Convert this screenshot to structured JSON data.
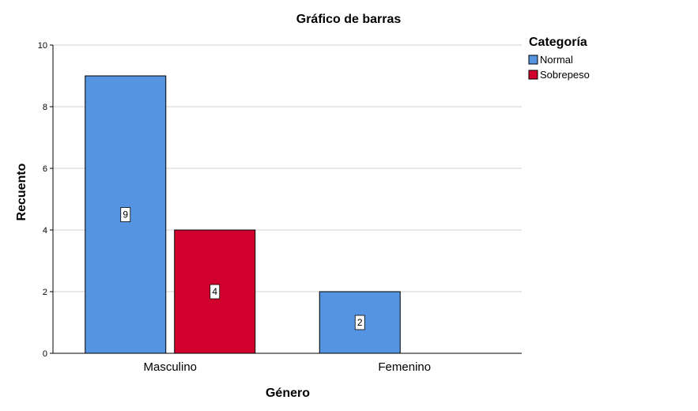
{
  "chart_data": {
    "type": "bar",
    "title": "Gráfico de barras",
    "xlabel": "Género",
    "ylabel": "Recuento",
    "categories": [
      "Masculino",
      "Femenino"
    ],
    "series": [
      {
        "name": "Normal",
        "values": [
          9,
          2
        ],
        "color": "#5594E0"
      },
      {
        "name": "Sobrepeso",
        "values": [
          4,
          null
        ],
        "color": "#D1002D"
      }
    ],
    "ylim": [
      0,
      10
    ],
    "yticks": [
      "0",
      "2",
      "4",
      "6",
      "8",
      "10"
    ],
    "grid": true,
    "legend": {
      "title": "Categoría",
      "placement": "right"
    },
    "data_labels": true
  }
}
